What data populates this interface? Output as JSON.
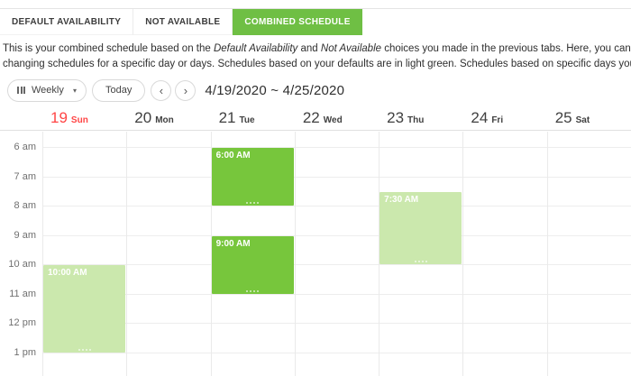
{
  "tabs": [
    {
      "label": "DEFAULT AVAILABILITY",
      "active": false
    },
    {
      "label": "NOT AVAILABLE",
      "active": false
    },
    {
      "label": "COMBINED SCHEDULE",
      "active": true
    }
  ],
  "description": {
    "lines": [
      [
        {
          "text": "This is your combined schedule based on the "
        },
        {
          "text": "Default Availability",
          "italic": true
        },
        {
          "text": " and "
        },
        {
          "text": "Not Available",
          "italic": true
        },
        {
          "text": " choices you made in the previous tabs. Here, you can make further refinements by"
        }
      ],
      [
        {
          "text": "changing schedules for a specific day or days. Schedules based on your defaults are in light green. Schedules based on specific days you've modified are in dark green."
        }
      ]
    ]
  },
  "toolbar": {
    "view_label": "Weekly",
    "caret": "▾",
    "today_label": "Today",
    "prev_label": "‹",
    "next_label": "›",
    "date_range": "4/19/2020 ~ 4/25/2020"
  },
  "calendar": {
    "days": [
      {
        "number": "19",
        "name": "Sun",
        "sunday": true
      },
      {
        "number": "20",
        "name": "Mon",
        "sunday": false
      },
      {
        "number": "21",
        "name": "Tue",
        "sunday": false
      },
      {
        "number": "22",
        "name": "Wed",
        "sunday": false
      },
      {
        "number": "23",
        "name": "Thu",
        "sunday": false
      },
      {
        "number": "24",
        "name": "Fri",
        "sunday": false
      },
      {
        "number": "25",
        "name": "Sat",
        "sunday": false
      }
    ],
    "hours": [
      "6 am",
      "7 am",
      "8 am",
      "9 am",
      "10 am",
      "11 am",
      "12 pm",
      "1 pm"
    ],
    "events": [
      {
        "day": 0,
        "label": "10:00 AM",
        "start": 10,
        "end": 13,
        "shade": "light"
      },
      {
        "day": 2,
        "label": "6:00 AM",
        "start": 6,
        "end": 8,
        "shade": "dark"
      },
      {
        "day": 2,
        "label": "9:00 AM",
        "start": 9,
        "end": 11,
        "shade": "dark"
      },
      {
        "day": 4,
        "label": "7:30 AM",
        "start": 7.5,
        "end": 10,
        "shade": "light"
      }
    ]
  },
  "colors": {
    "active_tab_green": "#6fbf44",
    "event_dark_green": "#77c63c",
    "event_light_green": "#cbe8ad",
    "sunday_red": "#ff4545"
  }
}
